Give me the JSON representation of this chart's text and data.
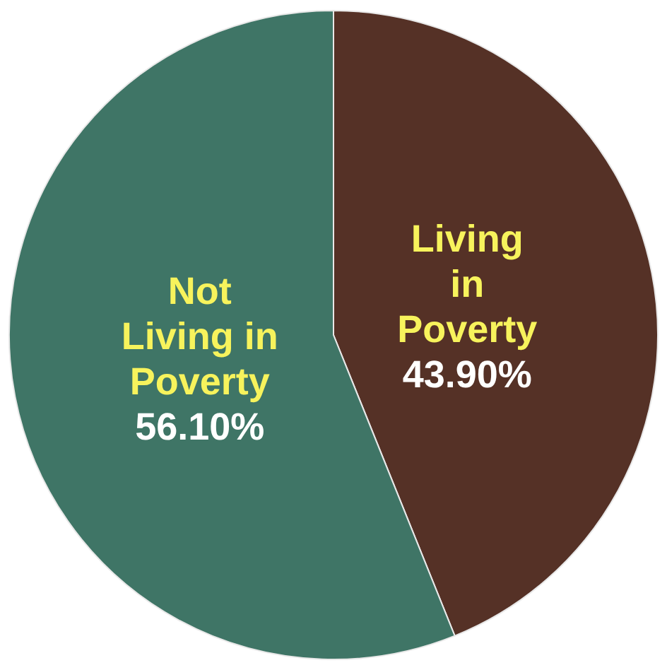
{
  "chart_data": {
    "type": "pie",
    "categories": [
      "Living\nin\nPoverty",
      "Not\nLiving in\nPoverty"
    ],
    "values": [
      43.9,
      56.1
    ],
    "colors": [
      "#553126",
      "#3f7566"
    ],
    "value_labels": [
      "43.90%",
      "56.10%"
    ],
    "legend": false
  }
}
